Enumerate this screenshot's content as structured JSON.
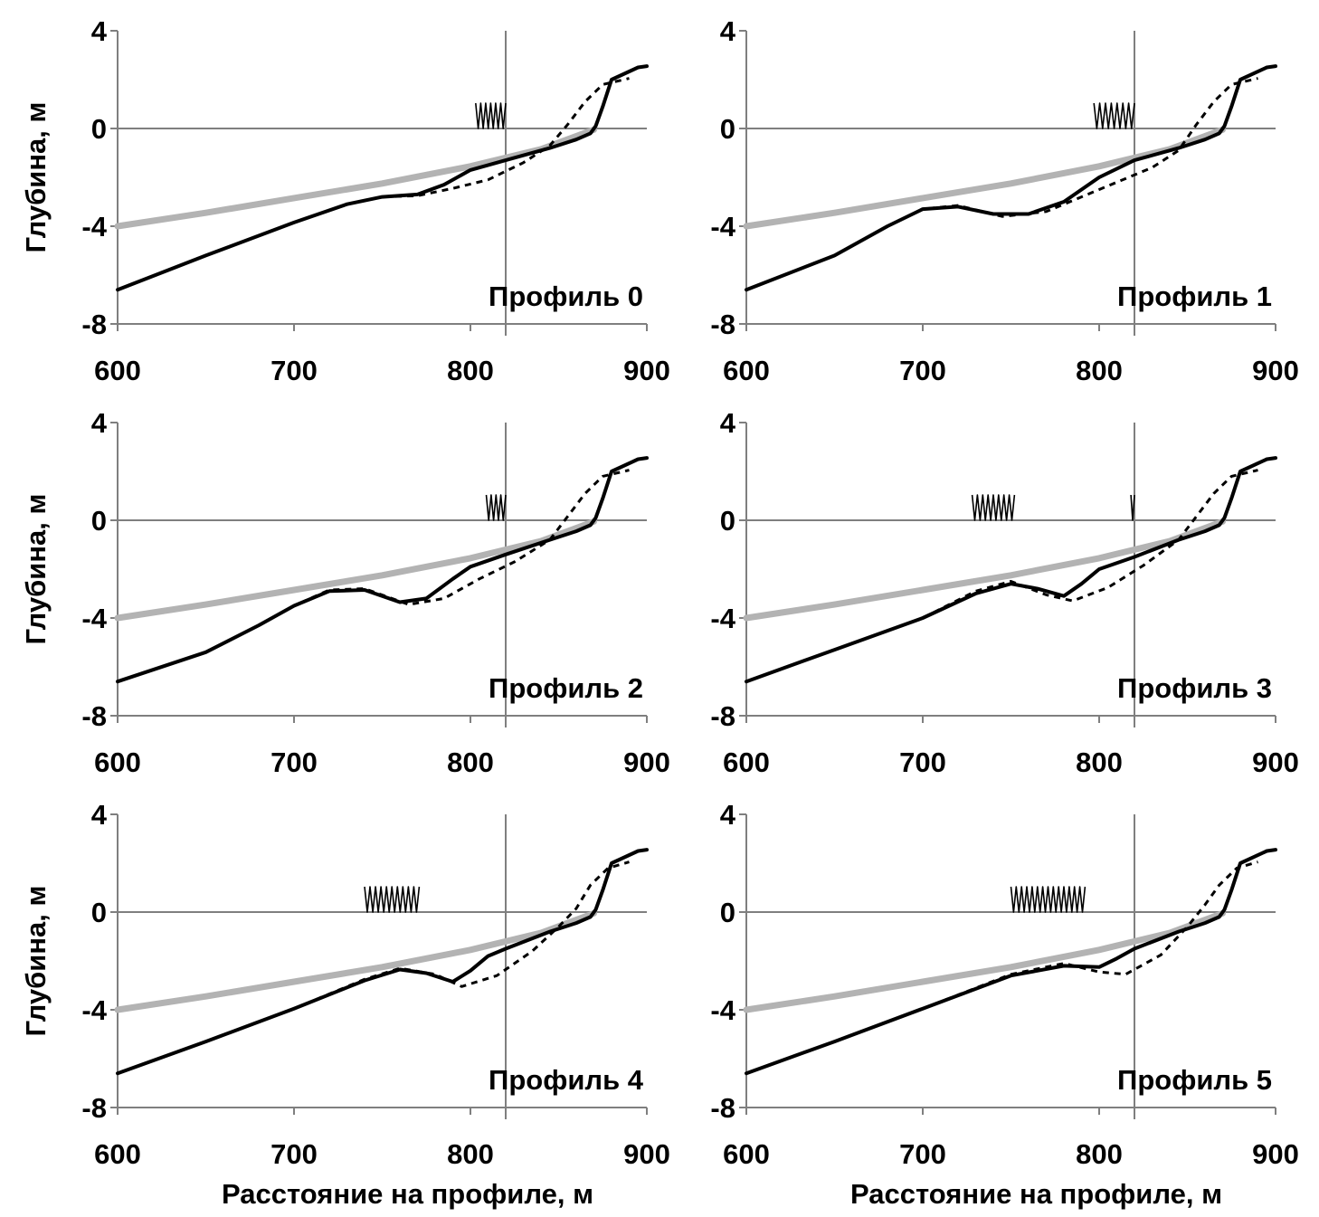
{
  "chart_data": [
    {
      "type": "line",
      "panel_label": "Профиль 0",
      "ylabel": "Глубина, м",
      "xlabel": "",
      "xlim": [
        600,
        900
      ],
      "ylim": [
        -8,
        4
      ],
      "xticks": [
        "600",
        "700",
        "800",
        "900"
      ],
      "yticks": [
        "4",
        "0",
        "-4",
        "-8"
      ],
      "vline_x": 820,
      "breakers": [
        {
          "x_start": 803,
          "x_end": 820
        }
      ],
      "series": [
        {
          "style": "solid-black",
          "x": [
            600,
            650,
            700,
            730,
            750,
            770,
            785,
            800,
            820,
            845,
            860,
            868,
            871,
            875,
            880,
            895,
            900
          ],
          "y": [
            -6.6,
            -5.2,
            -3.85,
            -3.1,
            -2.8,
            -2.7,
            -2.3,
            -1.7,
            -1.3,
            -0.8,
            -0.45,
            -0.2,
            0.1,
            0.9,
            2.0,
            2.5,
            2.55
          ]
        },
        {
          "style": "dashed-black",
          "x": [
            600,
            650,
            700,
            730,
            750,
            770,
            790,
            810,
            830,
            845,
            855,
            865,
            875,
            890
          ],
          "y": [
            -6.6,
            -5.2,
            -3.85,
            -3.1,
            -2.8,
            -2.75,
            -2.45,
            -2.1,
            -1.4,
            -0.7,
            0.15,
            1.1,
            1.8,
            2.05
          ]
        },
        {
          "style": "gray",
          "x": [
            600,
            650,
            700,
            750,
            800,
            840,
            870
          ],
          "y": [
            -4.0,
            -3.45,
            -2.85,
            -2.25,
            -1.55,
            -0.85,
            -0.05
          ]
        }
      ]
    },
    {
      "type": "line",
      "panel_label": "Профиль 1",
      "ylabel": "",
      "xlabel": "",
      "xlim": [
        600,
        900
      ],
      "ylim": [
        -8,
        4
      ],
      "xticks": [
        "600",
        "700",
        "800",
        "900"
      ],
      "yticks": [
        "4",
        "0",
        "-4",
        "-8"
      ],
      "vline_x": 820,
      "breakers": [
        {
          "x_start": 797,
          "x_end": 820
        }
      ],
      "series": [
        {
          "style": "solid-black",
          "x": [
            600,
            650,
            680,
            700,
            720,
            740,
            760,
            780,
            800,
            820,
            845,
            860,
            868,
            871,
            875,
            880,
            895,
            900
          ],
          "y": [
            -6.6,
            -5.2,
            -4.0,
            -3.3,
            -3.2,
            -3.5,
            -3.5,
            -3.0,
            -2.0,
            -1.3,
            -0.8,
            -0.45,
            -0.2,
            0.1,
            0.9,
            2.0,
            2.5,
            2.55
          ]
        },
        {
          "style": "dashed-black",
          "x": [
            600,
            650,
            680,
            700,
            720,
            745,
            770,
            790,
            810,
            830,
            845,
            855,
            865,
            875,
            890
          ],
          "y": [
            -6.6,
            -5.2,
            -4.0,
            -3.3,
            -3.15,
            -3.6,
            -3.4,
            -2.8,
            -2.2,
            -1.6,
            -0.9,
            0.15,
            1.1,
            1.8,
            2.05
          ]
        },
        {
          "style": "gray",
          "x": [
            600,
            650,
            700,
            750,
            800,
            840,
            870
          ],
          "y": [
            -4.0,
            -3.45,
            -2.85,
            -2.25,
            -1.55,
            -0.85,
            -0.05
          ]
        }
      ]
    },
    {
      "type": "line",
      "panel_label": "Профиль 2",
      "ylabel": "Глубина, м",
      "xlabel": "",
      "xlim": [
        600,
        900
      ],
      "ylim": [
        -8,
        4
      ],
      "xticks": [
        "600",
        "700",
        "800",
        "900"
      ],
      "yticks": [
        "4",
        "0",
        "-4",
        "-8"
      ],
      "vline_x": 820,
      "breakers": [
        {
          "x_start": 809,
          "x_end": 820
        }
      ],
      "series": [
        {
          "style": "solid-black",
          "x": [
            600,
            650,
            680,
            700,
            720,
            740,
            760,
            775,
            790,
            800,
            820,
            845,
            860,
            868,
            871,
            875,
            880,
            895,
            900
          ],
          "y": [
            -6.6,
            -5.4,
            -4.3,
            -3.5,
            -2.9,
            -2.85,
            -3.35,
            -3.2,
            -2.4,
            -1.9,
            -1.4,
            -0.8,
            -0.45,
            -0.2,
            0.1,
            0.9,
            2.0,
            2.5,
            2.55
          ]
        },
        {
          "style": "dashed-black",
          "x": [
            600,
            650,
            680,
            700,
            720,
            740,
            765,
            785,
            805,
            825,
            845,
            855,
            865,
            875,
            890
          ],
          "y": [
            -6.6,
            -5.4,
            -4.3,
            -3.5,
            -2.85,
            -2.8,
            -3.45,
            -3.2,
            -2.4,
            -1.7,
            -0.8,
            0.15,
            1.1,
            1.8,
            2.05
          ]
        },
        {
          "style": "gray",
          "x": [
            600,
            650,
            700,
            750,
            800,
            840,
            870
          ],
          "y": [
            -4.0,
            -3.45,
            -2.85,
            -2.25,
            -1.55,
            -0.85,
            -0.05
          ]
        }
      ]
    },
    {
      "type": "line",
      "panel_label": "Профиль 3",
      "ylabel": "",
      "xlabel": "",
      "xlim": [
        600,
        900
      ],
      "ylim": [
        -8,
        4
      ],
      "xticks": [
        "600",
        "700",
        "800",
        "900"
      ],
      "yticks": [
        "4",
        "0",
        "-4",
        "-8"
      ],
      "vline_x": 820,
      "breakers": [
        {
          "x_start": 728,
          "x_end": 752
        },
        {
          "x_start": 818,
          "x_end": 820
        }
      ],
      "series": [
        {
          "style": "solid-black",
          "x": [
            600,
            650,
            700,
            730,
            750,
            765,
            780,
            790,
            800,
            820,
            845,
            860,
            868,
            871,
            875,
            880,
            895,
            900
          ],
          "y": [
            -6.6,
            -5.3,
            -4.0,
            -3.0,
            -2.6,
            -2.8,
            -3.1,
            -2.6,
            -2.0,
            -1.5,
            -0.8,
            -0.45,
            -0.2,
            0.1,
            0.9,
            2.0,
            2.5,
            2.55
          ]
        },
        {
          "style": "dashed-black",
          "x": [
            600,
            650,
            700,
            730,
            750,
            770,
            785,
            805,
            825,
            845,
            855,
            865,
            875,
            890
          ],
          "y": [
            -6.6,
            -5.3,
            -4.0,
            -2.9,
            -2.5,
            -3.05,
            -3.3,
            -2.75,
            -1.85,
            -0.8,
            0.15,
            1.1,
            1.8,
            2.05
          ]
        },
        {
          "style": "gray",
          "x": [
            600,
            650,
            700,
            750,
            800,
            840,
            870
          ],
          "y": [
            -4.0,
            -3.45,
            -2.85,
            -2.25,
            -1.55,
            -0.85,
            -0.05
          ]
        }
      ]
    },
    {
      "type": "line",
      "panel_label": "Профиль 4",
      "ylabel": "Глубина, м",
      "xlabel": "Расстояние на профиле, м",
      "xlim": [
        600,
        900
      ],
      "ylim": [
        -8,
        4
      ],
      "xticks": [
        "600",
        "700",
        "800",
        "900"
      ],
      "yticks": [
        "4",
        "0",
        "-4",
        "-8"
      ],
      "vline_x": 820,
      "breakers": [
        {
          "x_start": 740,
          "x_end": 771
        }
      ],
      "series": [
        {
          "style": "solid-black",
          "x": [
            600,
            650,
            700,
            740,
            760,
            775,
            790,
            800,
            810,
            820,
            845,
            860,
            868,
            871,
            875,
            880,
            895,
            900
          ],
          "y": [
            -6.6,
            -5.3,
            -3.95,
            -2.8,
            -2.35,
            -2.5,
            -2.85,
            -2.4,
            -1.8,
            -1.5,
            -0.8,
            -0.45,
            -0.2,
            0.1,
            0.9,
            2.0,
            2.5,
            2.55
          ]
        },
        {
          "style": "dashed-black",
          "x": [
            600,
            650,
            700,
            740,
            760,
            780,
            795,
            815,
            835,
            850,
            860,
            868,
            878,
            890
          ],
          "y": [
            -6.6,
            -5.3,
            -3.95,
            -2.75,
            -2.3,
            -2.55,
            -3.05,
            -2.6,
            -1.6,
            -0.6,
            0.15,
            1.1,
            1.8,
            2.05
          ]
        },
        {
          "style": "gray",
          "x": [
            600,
            650,
            700,
            750,
            800,
            840,
            870
          ],
          "y": [
            -4.0,
            -3.45,
            -2.85,
            -2.25,
            -1.55,
            -0.85,
            -0.05
          ]
        }
      ]
    },
    {
      "type": "line",
      "panel_label": "Профиль 5",
      "ylabel": "",
      "xlabel": "Расстояние на профиле, м",
      "xlim": [
        600,
        900
      ],
      "ylim": [
        -8,
        4
      ],
      "xticks": [
        "600",
        "700",
        "800",
        "900"
      ],
      "yticks": [
        "4",
        "0",
        "-4",
        "-8"
      ],
      "vline_x": 820,
      "breakers": [
        {
          "x_start": 750,
          "x_end": 792
        }
      ],
      "series": [
        {
          "style": "solid-black",
          "x": [
            600,
            650,
            700,
            750,
            780,
            800,
            810,
            820,
            845,
            860,
            868,
            871,
            875,
            880,
            895,
            900
          ],
          "y": [
            -6.6,
            -5.3,
            -3.95,
            -2.6,
            -2.2,
            -2.25,
            -1.9,
            -1.5,
            -0.8,
            -0.45,
            -0.2,
            0.1,
            0.9,
            2.0,
            2.5,
            2.55
          ]
        },
        {
          "style": "dashed-black",
          "x": [
            600,
            650,
            700,
            750,
            780,
            800,
            815,
            835,
            850,
            860,
            868,
            878,
            890
          ],
          "y": [
            -6.6,
            -5.3,
            -3.95,
            -2.55,
            -2.1,
            -2.45,
            -2.55,
            -1.75,
            -0.6,
            0.3,
            1.1,
            1.8,
            2.05
          ]
        },
        {
          "style": "gray",
          "x": [
            600,
            650,
            700,
            750,
            800,
            840,
            870
          ],
          "y": [
            -4.0,
            -3.45,
            -2.85,
            -2.25,
            -1.55,
            -0.85,
            -0.05
          ]
        }
      ]
    }
  ]
}
